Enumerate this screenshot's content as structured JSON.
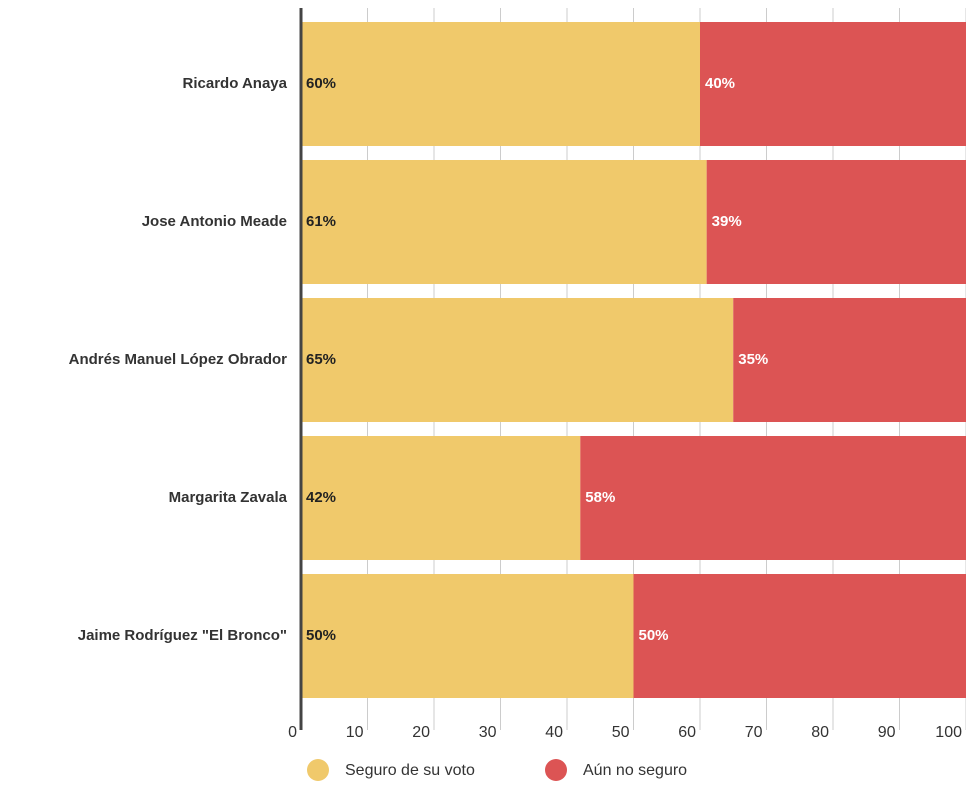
{
  "chart_data": {
    "type": "stacked_barh",
    "categories": [
      "Ricardo Anaya",
      "Jose Antonio Meade",
      "Andrés Manuel López Obrador",
      "Margarita Zavala",
      "Jaime Rodríguez \"El Bronco\""
    ],
    "series": [
      {
        "name": "Seguro de su voto",
        "color": "#f0c96b",
        "values": [
          60,
          61,
          65,
          42,
          50
        ],
        "value_labels": [
          "60%",
          "61%",
          "65%",
          "42%",
          "50%"
        ]
      },
      {
        "name": "Aún no seguro",
        "color": "#dc5454",
        "values": [
          40,
          39,
          35,
          58,
          50
        ],
        "value_labels": [
          "40%",
          "39%",
          "35%",
          "58%",
          "50%"
        ]
      }
    ],
    "xlim": [
      0,
      100
    ],
    "xticks": [
      0,
      10,
      20,
      30,
      40,
      50,
      60,
      70,
      80,
      90,
      100
    ],
    "grid": true,
    "legend": "bottom"
  }
}
